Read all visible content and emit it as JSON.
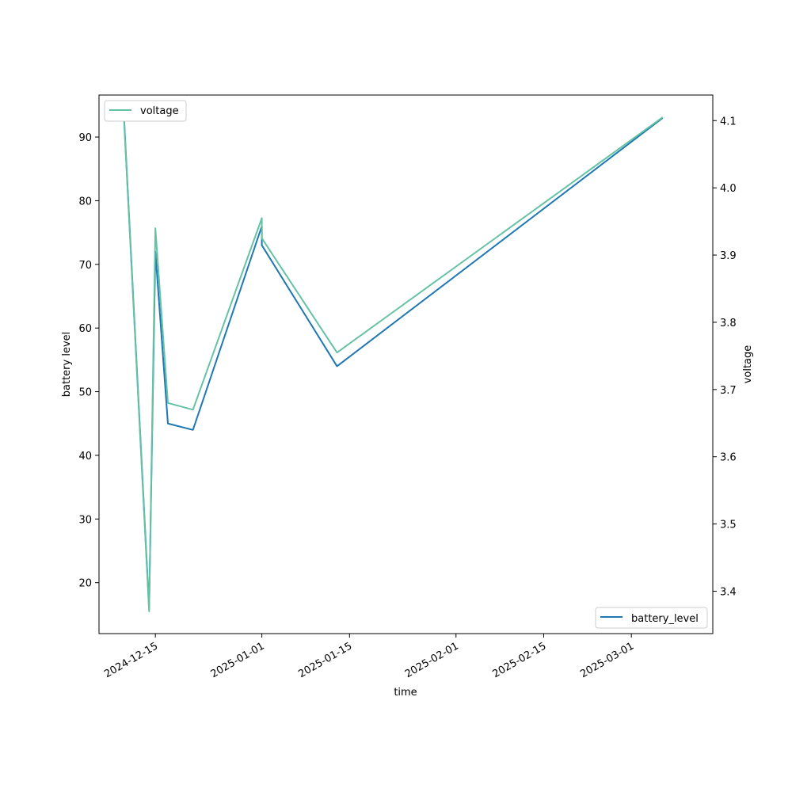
{
  "chart_data": {
    "type": "line",
    "xlabel": "time",
    "ylabel_left": "battery level",
    "ylabel_right": "voltage",
    "x_ticks": [
      "2024-12-15",
      "2025-01-01",
      "2025-01-15",
      "2025-02-01",
      "2025-02-15",
      "2025-03-01"
    ],
    "y_left_ticks": [
      20,
      30,
      40,
      50,
      60,
      70,
      80,
      90
    ],
    "y_right_ticks": [
      "3.4",
      "3.5",
      "3.6",
      "3.7",
      "3.8",
      "3.9",
      "4.0",
      "4.1"
    ],
    "ylim_left": [
      12.0,
      96.6
    ],
    "ylim_right": [
      3.337,
      4.138
    ],
    "xlim": [
      "2024-12-06",
      "2025-03-14"
    ],
    "grid": false,
    "series": [
      {
        "name": "battery_level",
        "axis": "left",
        "color": "#1f77b4",
        "legend_position": "lower-right",
        "points": [
          {
            "x": "2024-12-10",
            "y": 93
          },
          {
            "x": "2024-12-14",
            "y": 16
          },
          {
            "x": "2024-12-15",
            "y": 72
          },
          {
            "x": "2024-12-17",
            "y": 45
          },
          {
            "x": "2024-12-21",
            "y": 44
          },
          {
            "x": "2025-01-01",
            "y": 76
          },
          {
            "x": "2025-01-01",
            "y": 73
          },
          {
            "x": "2025-01-13",
            "y": 54
          },
          {
            "x": "2025-03-06",
            "y": 93
          }
        ]
      },
      {
        "name": "voltage",
        "axis": "right",
        "color": "#66c2a5",
        "legend_position": "upper-left",
        "points": [
          {
            "x": "2024-12-10",
            "y": 4.1
          },
          {
            "x": "2024-12-14",
            "y": 3.37
          },
          {
            "x": "2024-12-15",
            "y": 3.94
          },
          {
            "x": "2024-12-17",
            "y": 3.68
          },
          {
            "x": "2024-12-21",
            "y": 3.67
          },
          {
            "x": "2025-01-01",
            "y": 3.955
          },
          {
            "x": "2025-01-01",
            "y": 3.925
          },
          {
            "x": "2025-01-13",
            "y": 3.755
          },
          {
            "x": "2025-03-06",
            "y": 4.105
          }
        ]
      }
    ]
  }
}
